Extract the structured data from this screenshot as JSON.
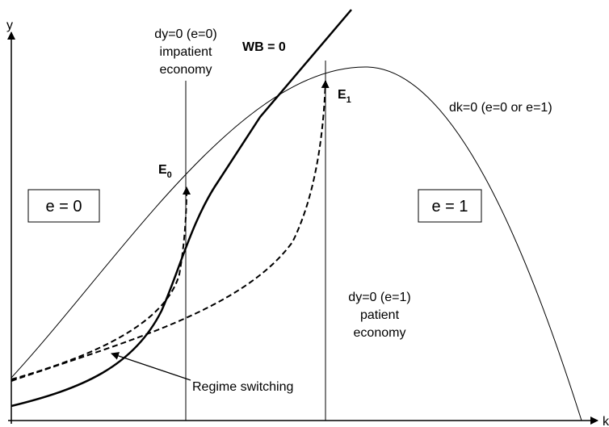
{
  "axes": {
    "y": "y",
    "x": "k"
  },
  "lines": {
    "impatient": {
      "condition": "dy=0 (e=0)",
      "type": "impatient",
      "noun": "economy"
    },
    "patient": {
      "condition": "dy=0 (e=1)",
      "type": "patient",
      "noun": "economy"
    },
    "wb": "WB = 0",
    "dk": "dk=0 (e=0 or e=1)"
  },
  "equilibria": [
    {
      "label": "E",
      "subscript": "0"
    },
    {
      "label": "E",
      "subscript": "1"
    }
  ],
  "regimes": [
    "e = 0",
    "e = 1"
  ],
  "annotation": "Regime switching"
}
